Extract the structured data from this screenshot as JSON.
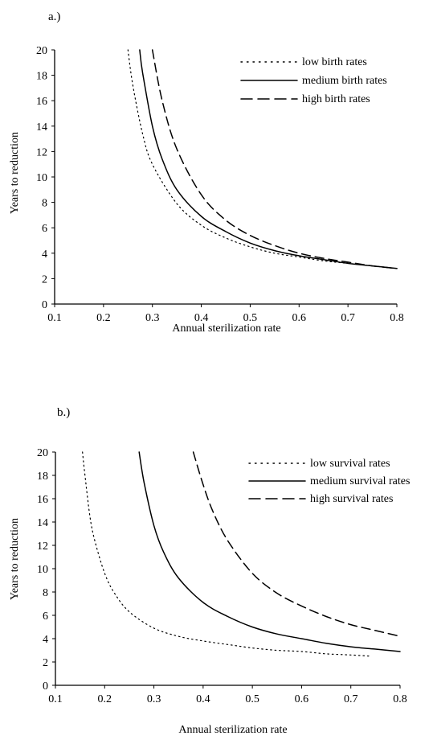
{
  "chart_data": [
    {
      "panel_label": "a.)",
      "type": "line",
      "title": "",
      "xlabel": "Annual sterilization rate",
      "ylabel": "Years to reduction",
      "xlim": [
        0.1,
        0.8
      ],
      "ylim": [
        0,
        20
      ],
      "x_ticks": [
        "0.1",
        "0.2",
        "0.3",
        "0.4",
        "0.5",
        "0.6",
        "0.7",
        "0.8"
      ],
      "y_ticks": [
        "0",
        "2",
        "4",
        "6",
        "8",
        "10",
        "12",
        "14",
        "16",
        "18",
        "20"
      ],
      "grid": false,
      "legend_position": "top-right",
      "series": [
        {
          "name": "low birth rates",
          "style": "dotted",
          "color": "#000000",
          "x": [
            0.25,
            0.26,
            0.28,
            0.3,
            0.35,
            0.4,
            0.45,
            0.5,
            0.55,
            0.6,
            0.65,
            0.7,
            0.75,
            0.8
          ],
          "y": [
            20.0,
            17.2,
            13.4,
            11.0,
            7.9,
            6.2,
            5.2,
            4.5,
            4.0,
            3.7,
            3.4,
            3.2,
            3.0,
            2.8
          ]
        },
        {
          "name": "medium birth rates",
          "style": "solid",
          "color": "#000000",
          "x": [
            0.274,
            0.28,
            0.3,
            0.32,
            0.35,
            0.4,
            0.45,
            0.5,
            0.55,
            0.6,
            0.65,
            0.7,
            0.75,
            0.8
          ],
          "y": [
            20.0,
            18.2,
            14.0,
            11.4,
            9.0,
            6.9,
            5.7,
            4.8,
            4.2,
            3.8,
            3.5,
            3.2,
            3.0,
            2.8
          ]
        },
        {
          "name": "high birth rates",
          "style": "dashed",
          "color": "#000000",
          "x": [
            0.3,
            0.32,
            0.35,
            0.4,
            0.45,
            0.5,
            0.55,
            0.6,
            0.65,
            0.7,
            0.75,
            0.8
          ],
          "y": [
            20.0,
            16.0,
            12.2,
            8.6,
            6.6,
            5.4,
            4.6,
            4.0,
            3.6,
            3.3,
            3.0,
            2.8
          ]
        }
      ]
    },
    {
      "panel_label": "b.)",
      "type": "line",
      "title": "",
      "xlabel": "Annual sterilization rate",
      "ylabel": "Years to reduction",
      "xlim": [
        0.1,
        0.8
      ],
      "ylim": [
        0,
        20
      ],
      "x_ticks": [
        "0.1",
        "0.2",
        "0.3",
        "0.4",
        "0.5",
        "0.6",
        "0.7",
        "0.8"
      ],
      "y_ticks": [
        "0",
        "2",
        "4",
        "6",
        "8",
        "10",
        "12",
        "14",
        "16",
        "18",
        "20"
      ],
      "grid": false,
      "legend_position": "top-right",
      "series": [
        {
          "name": "low survival rates",
          "style": "dotted",
          "color": "#000000",
          "x": [
            0.155,
            0.16,
            0.17,
            0.18,
            0.2,
            0.22,
            0.25,
            0.3,
            0.35,
            0.4,
            0.45,
            0.5,
            0.55,
            0.6,
            0.65,
            0.7,
            0.74
          ],
          "y": [
            20.0,
            18.0,
            14.5,
            12.4,
            9.6,
            7.9,
            6.3,
            4.9,
            4.2,
            3.8,
            3.5,
            3.2,
            3.0,
            2.9,
            2.7,
            2.6,
            2.5
          ]
        },
        {
          "name": "medium survival rates",
          "style": "solid",
          "color": "#000000",
          "x": [
            0.27,
            0.28,
            0.3,
            0.32,
            0.35,
            0.4,
            0.45,
            0.5,
            0.55,
            0.6,
            0.65,
            0.7,
            0.75,
            0.8
          ],
          "y": [
            20.0,
            17.4,
            13.7,
            11.4,
            9.2,
            7.1,
            5.9,
            5.0,
            4.4,
            4.0,
            3.6,
            3.3,
            3.1,
            2.9
          ]
        },
        {
          "name": "high survival rates",
          "style": "dashed",
          "color": "#000000",
          "x": [
            0.38,
            0.4,
            0.42,
            0.45,
            0.5,
            0.55,
            0.6,
            0.65,
            0.7,
            0.75,
            0.8
          ],
          "y": [
            20.0,
            17.2,
            14.9,
            12.4,
            9.6,
            7.9,
            6.8,
            5.9,
            5.2,
            4.7,
            4.2
          ]
        }
      ]
    }
  ]
}
